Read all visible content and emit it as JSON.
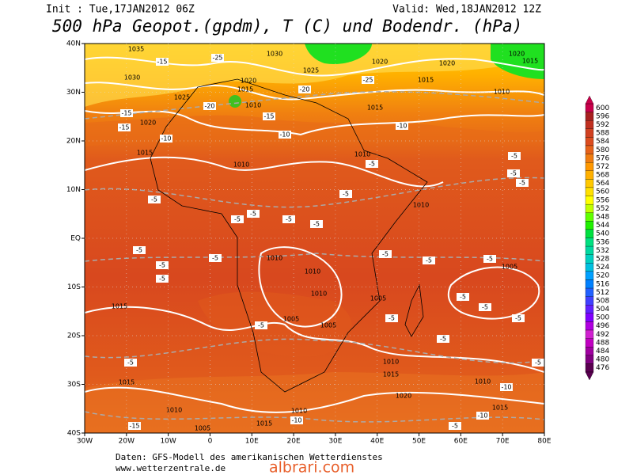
{
  "header": {
    "init": "Init : Tue,17JAN2012 06Z",
    "valid": "Valid: Wed,18JAN2012 12Z",
    "title": "500 hPa Geopot.(gpdm), T (C) und Bodendr. (hPa)"
  },
  "map": {
    "lat_labels": [
      "40N",
      "30N",
      "20N",
      "10N",
      "EQ",
      "10S",
      "20S",
      "30S",
      "40S"
    ],
    "lon_labels": [
      "30W",
      "20W",
      "10W",
      "0",
      "10E",
      "20E",
      "30E",
      "40E",
      "50E",
      "60E",
      "70E",
      "80E"
    ],
    "pressure_labels": [
      1035,
      1030,
      1030,
      1025,
      1020,
      1015,
      1010,
      1020,
      1015,
      1025,
      1020,
      1020,
      1015,
      1010,
      1015,
      1010,
      1010,
      1010,
      1010,
      1010,
      1010,
      1005,
      1005,
      1005,
      1005,
      1015,
      1010,
      1015,
      1010,
      1015,
      1020,
      1010,
      1010,
      1015,
      1005,
      1015,
      1020,
      1015
    ],
    "temperature_labels": [
      -15,
      -25,
      -20,
      -15,
      -15,
      -10,
      -20,
      -25,
      -15,
      -10,
      -10,
      -5,
      -5,
      -5,
      -5,
      -5,
      -5,
      -5,
      -5,
      -5,
      -5,
      -5,
      -5,
      -5,
      -5,
      -5,
      -5,
      -5,
      -5,
      -5,
      -5,
      -5,
      -5,
      -5,
      -5,
      -5,
      -10,
      -10,
      -10,
      -15,
      -5
    ]
  },
  "colorbar": {
    "levels": [
      600,
      596,
      592,
      588,
      584,
      580,
      576,
      572,
      568,
      564,
      560,
      556,
      552,
      548,
      544,
      540,
      536,
      532,
      528,
      524,
      520,
      516,
      512,
      508,
      504,
      500,
      496,
      492,
      488,
      484,
      480,
      476
    ],
    "colors": [
      "#c8004a",
      "#a82020",
      "#c03020",
      "#d04020",
      "#dc4c1e",
      "#e6621a",
      "#f07c10",
      "#ff9800",
      "#ffb000",
      "#ffc800",
      "#ffe000",
      "#ffff00",
      "#c0ff00",
      "#60ff00",
      "#20f000",
      "#00e040",
      "#00e080",
      "#00d8a0",
      "#00d0c0",
      "#00c0e0",
      "#00a0ff",
      "#0080ff",
      "#2060ff",
      "#4040ff",
      "#6020ff",
      "#8000ff",
      "#b000e0",
      "#d020d0",
      "#c000c0",
      "#a000a0",
      "#800080",
      "#5a0050"
    ]
  },
  "footer": {
    "source": "Daten: GFS-Modell des amerikanischen Wetterdienstes",
    "site": "www.wetterzentrale.de"
  },
  "watermark": "albrari.com"
}
